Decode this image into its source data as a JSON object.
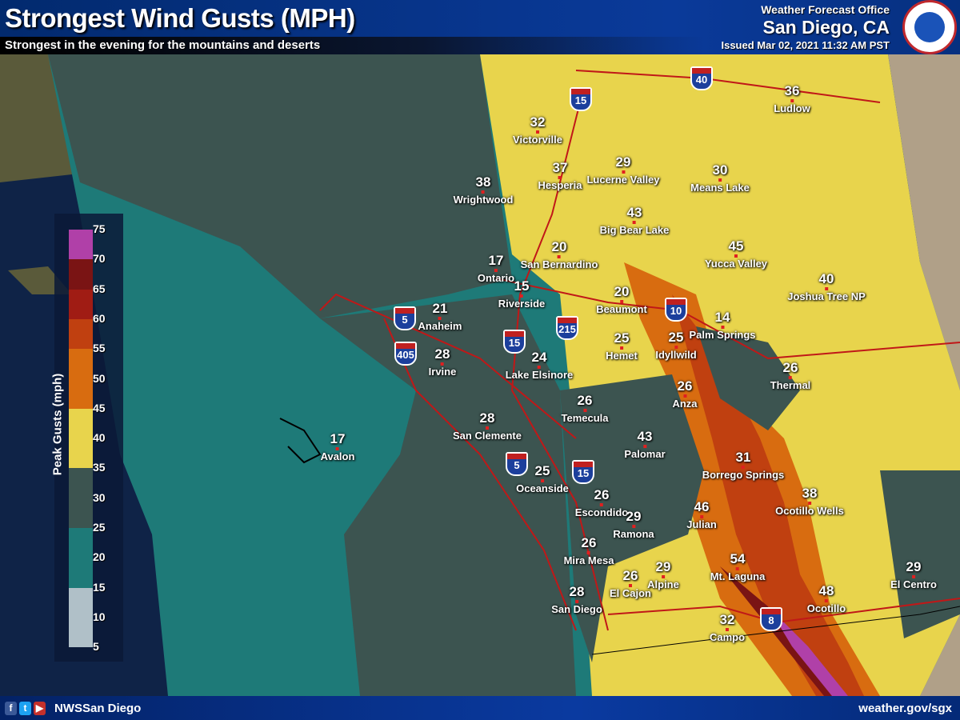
{
  "header": {
    "title": "Strongest Wind Gusts (MPH)",
    "subtitle": "Strongest in the evening for the mountains and deserts",
    "office_label": "Weather Forecast Office",
    "office": "San Diego, CA",
    "issued": "Issued Mar 02, 2021 11:32 AM PST",
    "logo": "NATIONAL WEATHER SERVICE"
  },
  "footer": {
    "social": "NWSSan Diego",
    "site": "weather.gov/sgx",
    "icons": [
      "facebook-icon",
      "twitter-icon",
      "youtube-icon"
    ]
  },
  "legend": {
    "title": "Peak Gusts (mph)",
    "ticks": [
      "75",
      "70",
      "65",
      "60",
      "55",
      "50",
      "45",
      "40",
      "35",
      "30",
      "25",
      "20",
      "15",
      "10",
      "5"
    ],
    "bins": [
      {
        "range": "70-75",
        "color": "#b040a8"
      },
      {
        "range": "65-70",
        "color": "#7a1414"
      },
      {
        "range": "60-65",
        "color": "#a01c14"
      },
      {
        "range": "55-60",
        "color": "#c04010"
      },
      {
        "range": "45-55",
        "color": "#d86c10"
      },
      {
        "range": "35-45",
        "color": "#e8d44c"
      },
      {
        "range": "25-35",
        "color": "#3c5450"
      },
      {
        "range": "15-25",
        "color": "#1e7a78"
      },
      {
        "range": "5-15",
        "color": "#b0c0c8"
      }
    ]
  },
  "cities": [
    {
      "name": "Ludlow",
      "value": "36"
    },
    {
      "name": "Victorville",
      "value": "32"
    },
    {
      "name": "Hesperia",
      "value": "37"
    },
    {
      "name": "Lucerne Valley",
      "value": "29"
    },
    {
      "name": "Means Lake",
      "value": "30"
    },
    {
      "name": "Wrightwood",
      "value": "38"
    },
    {
      "name": "Big Bear Lake",
      "value": "43"
    },
    {
      "name": "Yucca Valley",
      "value": "45"
    },
    {
      "name": "Joshua Tree NP",
      "value": "40"
    },
    {
      "name": "San Bernardino",
      "value": "20"
    },
    {
      "name": "Ontario",
      "value": "17"
    },
    {
      "name": "Riverside",
      "value": "15"
    },
    {
      "name": "Beaumont",
      "value": "20"
    },
    {
      "name": "Anaheim",
      "value": "21"
    },
    {
      "name": "Palm Springs",
      "value": "14"
    },
    {
      "name": "Hemet",
      "value": "25"
    },
    {
      "name": "Idyllwild",
      "value": "25"
    },
    {
      "name": "Irvine",
      "value": "28"
    },
    {
      "name": "Lake Elsinore",
      "value": "24"
    },
    {
      "name": "Thermal",
      "value": "26"
    },
    {
      "name": "Anza",
      "value": "26"
    },
    {
      "name": "Temecula",
      "value": "26"
    },
    {
      "name": "San Clemente",
      "value": "28"
    },
    {
      "name": "Avalon",
      "value": "17"
    },
    {
      "name": "Palomar",
      "value": "43"
    },
    {
      "name": "Borrego Springs",
      "value": "31"
    },
    {
      "name": "Oceanside",
      "value": "25"
    },
    {
      "name": "Ocotillo Wells",
      "value": "38"
    },
    {
      "name": "Escondido",
      "value": "26"
    },
    {
      "name": "Julian",
      "value": "46"
    },
    {
      "name": "Ramona",
      "value": "29"
    },
    {
      "name": "Mira Mesa",
      "value": "26"
    },
    {
      "name": "Mt. Laguna",
      "value": "54"
    },
    {
      "name": "El Centro",
      "value": "29"
    },
    {
      "name": "Alpine",
      "value": "29"
    },
    {
      "name": "El Cajon",
      "value": "26"
    },
    {
      "name": "Ocotillo",
      "value": "48"
    },
    {
      "name": "San Diego",
      "value": "28"
    },
    {
      "name": "Campo",
      "value": "32"
    }
  ],
  "interstates": [
    "15",
    "40",
    "5",
    "405",
    "15",
    "215",
    "10",
    "5",
    "15",
    "8"
  ]
}
